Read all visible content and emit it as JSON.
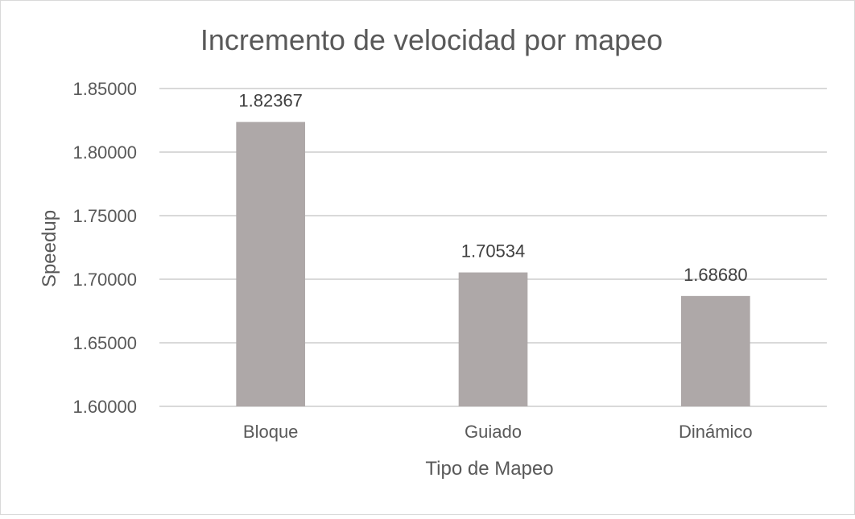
{
  "chart_data": {
    "type": "bar",
    "title": "Incremento de velocidad por mapeo",
    "xlabel": "Tipo de Mapeo",
    "ylabel": "Speedup",
    "categories": [
      "Bloque",
      "Guiado",
      "Dinámico"
    ],
    "values": [
      1.82367,
      1.70534,
      1.6868
    ],
    "data_labels": [
      "1.82367",
      "1.70534",
      "1.68680"
    ],
    "ylim": [
      1.6,
      1.85
    ],
    "yticks": [
      1.6,
      1.65,
      1.7,
      1.75,
      1.8,
      1.85
    ],
    "ytick_labels": [
      "1.60000",
      "1.65000",
      "1.70000",
      "1.75000",
      "1.80000",
      "1.85000"
    ],
    "grid": true,
    "legend": "none",
    "colors": {
      "bar": "#aea8a8",
      "grid": "#d9d9d9",
      "text": "#595959",
      "title": "#595959",
      "label": "#404040"
    }
  }
}
